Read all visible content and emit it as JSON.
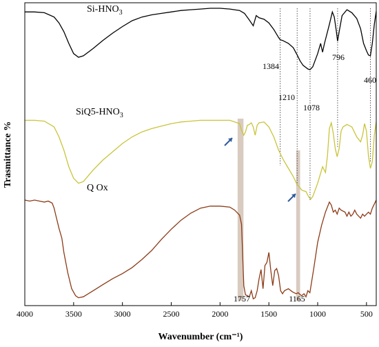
{
  "chart_data": {
    "type": "line",
    "xlabel": "Wavenumber (cm⁻¹)",
    "ylabel": "Trasmittance %",
    "xlim": [
      4000,
      400
    ],
    "x_reversed": true,
    "y_ticks_shown": false,
    "x_ticks": [
      4000,
      3500,
      3000,
      2500,
      2000,
      1500,
      1000,
      500
    ],
    "x_tick_labels": [
      "4000",
      "3500",
      "3000",
      "2500",
      "2000",
      "1500",
      "1000",
      "500"
    ],
    "series": [
      {
        "name": "Si-HNO₃",
        "name_base": "Si-HNO",
        "name_sub": "3",
        "color": "#000000",
        "points": [
          [
            4000,
            0.95
          ],
          [
            3900,
            0.95
          ],
          [
            3800,
            0.94
          ],
          [
            3700,
            0.88
          ],
          [
            3650,
            0.8
          ],
          [
            3600,
            0.68
          ],
          [
            3550,
            0.52
          ],
          [
            3500,
            0.38
          ],
          [
            3450,
            0.33
          ],
          [
            3400,
            0.35
          ],
          [
            3300,
            0.45
          ],
          [
            3200,
            0.56
          ],
          [
            3100,
            0.66
          ],
          [
            3000,
            0.75
          ],
          [
            2900,
            0.83
          ],
          [
            2800,
            0.88
          ],
          [
            2700,
            0.91
          ],
          [
            2600,
            0.93
          ],
          [
            2500,
            0.95
          ],
          [
            2400,
            0.97
          ],
          [
            2300,
            0.98
          ],
          [
            2200,
            0.99
          ],
          [
            2100,
            1.0
          ],
          [
            2000,
            1.0
          ],
          [
            1900,
            0.99
          ],
          [
            1800,
            0.97
          ],
          [
            1750,
            0.93
          ],
          [
            1700,
            0.84
          ],
          [
            1660,
            0.76
          ],
          [
            1630,
            0.9
          ],
          [
            1600,
            0.87
          ],
          [
            1550,
            0.85
          ],
          [
            1500,
            0.8
          ],
          [
            1450,
            0.71
          ],
          [
            1400,
            0.6
          ],
          [
            1384,
            0.57
          ],
          [
            1360,
            0.56
          ],
          [
            1300,
            0.52
          ],
          [
            1250,
            0.46
          ],
          [
            1210,
            0.36
          ],
          [
            1180,
            0.28
          ],
          [
            1150,
            0.22
          ],
          [
            1100,
            0.17
          ],
          [
            1078,
            0.16
          ],
          [
            1050,
            0.2
          ],
          [
            1000,
            0.38
          ],
          [
            970,
            0.52
          ],
          [
            950,
            0.4
          ],
          [
            930,
            0.52
          ],
          [
            880,
            0.78
          ],
          [
            850,
            0.95
          ],
          [
            830,
            0.88
          ],
          [
            810,
            0.7
          ],
          [
            796,
            0.55
          ],
          [
            780,
            0.68
          ],
          [
            750,
            0.9
          ],
          [
            700,
            0.98
          ],
          [
            650,
            0.94
          ],
          [
            600,
            0.86
          ],
          [
            560,
            0.72
          ],
          [
            530,
            0.52
          ],
          [
            500,
            0.42
          ],
          [
            480,
            0.36
          ],
          [
            460,
            0.35
          ],
          [
            440,
            0.52
          ],
          [
            420,
            0.78
          ],
          [
            400,
            0.96
          ]
        ]
      },
      {
        "name": "SiQ5-HNO₃",
        "name_base": "SiQ5-HNO",
        "name_sub": "3",
        "color": "#c9c43a",
        "points": [
          [
            4000,
            0.98
          ],
          [
            3900,
            0.98
          ],
          [
            3800,
            0.97
          ],
          [
            3700,
            0.9
          ],
          [
            3650,
            0.78
          ],
          [
            3600,
            0.62
          ],
          [
            3550,
            0.42
          ],
          [
            3500,
            0.28
          ],
          [
            3450,
            0.22
          ],
          [
            3400,
            0.24
          ],
          [
            3300,
            0.38
          ],
          [
            3200,
            0.5
          ],
          [
            3100,
            0.6
          ],
          [
            3000,
            0.7
          ],
          [
            2900,
            0.78
          ],
          [
            2800,
            0.84
          ],
          [
            2700,
            0.88
          ],
          [
            2600,
            0.91
          ],
          [
            2500,
            0.94
          ],
          [
            2400,
            0.96
          ],
          [
            2300,
            0.97
          ],
          [
            2200,
            0.98
          ],
          [
            2100,
            0.98
          ],
          [
            2000,
            0.98
          ],
          [
            1900,
            0.98
          ],
          [
            1850,
            0.96
          ],
          [
            1800,
            0.94
          ],
          [
            1780,
            0.86
          ],
          [
            1757,
            0.8
          ],
          [
            1740,
            0.84
          ],
          [
            1720,
            0.92
          ],
          [
            1700,
            0.93
          ],
          [
            1680,
            0.95
          ],
          [
            1660,
            0.9
          ],
          [
            1640,
            0.8
          ],
          [
            1620,
            0.92
          ],
          [
            1600,
            0.95
          ],
          [
            1550,
            0.96
          ],
          [
            1500,
            0.9
          ],
          [
            1450,
            0.78
          ],
          [
            1400,
            0.62
          ],
          [
            1350,
            0.5
          ],
          [
            1300,
            0.4
          ],
          [
            1250,
            0.3
          ],
          [
            1210,
            0.2
          ],
          [
            1190,
            0.18
          ],
          [
            1165,
            0.14
          ],
          [
            1150,
            0.13
          ],
          [
            1120,
            0.12
          ],
          [
            1090,
            0.05
          ],
          [
            1070,
            0.03
          ],
          [
            1050,
            0.06
          ],
          [
            1000,
            0.22
          ],
          [
            950,
            0.42
          ],
          [
            920,
            0.35
          ],
          [
            900,
            0.55
          ],
          [
            880,
            0.88
          ],
          [
            860,
            0.95
          ],
          [
            840,
            0.82
          ],
          [
            820,
            0.64
          ],
          [
            800,
            0.54
          ],
          [
            780,
            0.64
          ],
          [
            760,
            0.85
          ],
          [
            740,
            0.9
          ],
          [
            700,
            0.93
          ],
          [
            650,
            0.9
          ],
          [
            600,
            0.78
          ],
          [
            560,
            0.72
          ],
          [
            540,
            0.8
          ],
          [
            520,
            0.94
          ],
          [
            500,
            0.85
          ],
          [
            480,
            0.55
          ],
          [
            460,
            0.4
          ],
          [
            440,
            0.48
          ],
          [
            420,
            0.8
          ],
          [
            400,
            0.96
          ]
        ]
      },
      {
        "name": "Q Ox",
        "color": "#8b3a16",
        "points": [
          [
            4000,
            1.0
          ],
          [
            3950,
            0.99
          ],
          [
            3900,
            1.0
          ],
          [
            3850,
            0.99
          ],
          [
            3800,
            0.98
          ],
          [
            3760,
            0.99
          ],
          [
            3720,
            0.97
          ],
          [
            3700,
            0.92
          ],
          [
            3680,
            0.84
          ],
          [
            3650,
            0.72
          ],
          [
            3620,
            0.62
          ],
          [
            3600,
            0.48
          ],
          [
            3560,
            0.28
          ],
          [
            3520,
            0.12
          ],
          [
            3480,
            0.05
          ],
          [
            3450,
            0.03
          ],
          [
            3400,
            0.04
          ],
          [
            3300,
            0.1
          ],
          [
            3200,
            0.16
          ],
          [
            3100,
            0.22
          ],
          [
            3000,
            0.27
          ],
          [
            2900,
            0.33
          ],
          [
            2800,
            0.41
          ],
          [
            2700,
            0.5
          ],
          [
            2600,
            0.61
          ],
          [
            2500,
            0.71
          ],
          [
            2400,
            0.8
          ],
          [
            2300,
            0.87
          ],
          [
            2200,
            0.92
          ],
          [
            2100,
            0.94
          ],
          [
            2000,
            0.94
          ],
          [
            1900,
            0.93
          ],
          [
            1850,
            0.9
          ],
          [
            1800,
            0.85
          ],
          [
            1780,
            0.76
          ],
          [
            1770,
            0.5
          ],
          [
            1757,
            0.15
          ],
          [
            1740,
            0.06
          ],
          [
            1720,
            0.05
          ],
          [
            1700,
            0.04
          ],
          [
            1680,
            0.1
          ],
          [
            1660,
            0.02
          ],
          [
            1640,
            0.03
          ],
          [
            1620,
            0.1
          ],
          [
            1600,
            0.22
          ],
          [
            1580,
            0.31
          ],
          [
            1560,
            0.12
          ],
          [
            1540,
            0.35
          ],
          [
            1520,
            0.38
          ],
          [
            1500,
            0.48
          ],
          [
            1480,
            0.3
          ],
          [
            1460,
            0.15
          ],
          [
            1440,
            0.3
          ],
          [
            1420,
            0.32
          ],
          [
            1400,
            0.25
          ],
          [
            1380,
            0.1
          ],
          [
            1360,
            0.07
          ],
          [
            1340,
            0.1
          ],
          [
            1300,
            0.12
          ],
          [
            1260,
            0.09
          ],
          [
            1220,
            0.07
          ],
          [
            1200,
            0.08
          ],
          [
            1165,
            0.05
          ],
          [
            1140,
            0.07
          ],
          [
            1120,
            0.04
          ],
          [
            1100,
            0.1
          ],
          [
            1080,
            0.08
          ],
          [
            1060,
            0.2
          ],
          [
            1040,
            0.32
          ],
          [
            1000,
            0.58
          ],
          [
            960,
            0.75
          ],
          [
            920,
            0.88
          ],
          [
            880,
            0.98
          ],
          [
            860,
            0.95
          ],
          [
            840,
            0.88
          ],
          [
            820,
            0.9
          ],
          [
            800,
            0.86
          ],
          [
            780,
            0.92
          ],
          [
            760,
            0.9
          ],
          [
            720,
            0.88
          ],
          [
            700,
            0.84
          ],
          [
            680,
            0.88
          ],
          [
            660,
            0.84
          ],
          [
            640,
            0.86
          ],
          [
            620,
            0.9
          ],
          [
            600,
            0.86
          ],
          [
            560,
            0.82
          ],
          [
            540,
            0.86
          ],
          [
            520,
            0.84
          ],
          [
            500,
            0.86
          ],
          [
            480,
            0.88
          ],
          [
            460,
            0.86
          ],
          [
            440,
            0.92
          ],
          [
            420,
            0.96
          ],
          [
            400,
            1.0
          ]
        ]
      }
    ],
    "peak_labels": [
      {
        "x": 1384,
        "text": "1384"
      },
      {
        "x": 1210,
        "text": "1210"
      },
      {
        "x": 1078,
        "text": "1078"
      },
      {
        "x": 796,
        "text": "796"
      },
      {
        "x": 460,
        "text": "460"
      },
      {
        "x": 1757,
        "text": "1757"
      },
      {
        "x": 1165,
        "text": "1165"
      }
    ],
    "dotted_reference_lines": [
      1384,
      1210,
      1078,
      796,
      460
    ],
    "highlight_bands": [
      {
        "center": 1790,
        "width": 60,
        "color": "#d9cbc0"
      },
      {
        "center": 1200,
        "width": 40,
        "color": "#d9cbc0"
      }
    ],
    "arrows": [
      {
        "at": 1790
      },
      {
        "at": 1220
      }
    ]
  }
}
